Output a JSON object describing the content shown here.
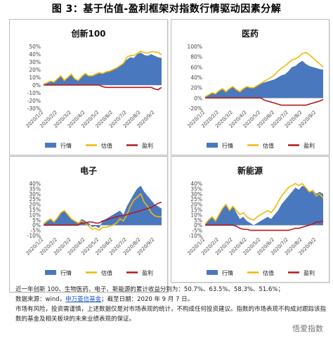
{
  "page": {
    "title": "图 3：基于估值-盈利框架对指数行情驱动因素分解",
    "footer": {
      "line1": "近一年创新 100、生物医药、电子、新能源的累计收益分别为：50.7%、63.5%、58.3%、51.6%；",
      "line2_prefix": "数据来源：wind，",
      "line2_link": "申万菱信基金",
      "line2_suffix": "；截至日期：2020 年 9 月 7 日。",
      "line3": "市场有风险，投资需谨慎，上述数据仅是对市场表现的统计，不构成任何投资建议。指数的市场表现不构成对跟踪该指",
      "line4": "数的基金及相关板块的未来业绩表现的保证。"
    },
    "watermark": "悟爱指数",
    "colors": {
      "market": "#4a78be",
      "valuation": "#f2b705",
      "earnings": "#b21a1a"
    }
  },
  "chart_data": [
    {
      "type": "area",
      "title": "创新100",
      "x_ticks": [
        "2020/1/2",
        "2020/2/2",
        "2020/3/2",
        "2020/4/2",
        "2020/5/2",
        "2020/6/2",
        "2020/7/2",
        "2020/8/2",
        "2020/9/2"
      ],
      "y_ticks": [
        "50%",
        "40%",
        "30%",
        "20%",
        "10%",
        "0%",
        "-10%",
        "-20%",
        "-30%"
      ],
      "ylim": [
        -30,
        50
      ],
      "series_names": [
        "行情",
        "估值",
        "盈利"
      ],
      "x": [
        0,
        0.25,
        0.5,
        0.75,
        1,
        1.25,
        1.5,
        1.75,
        2,
        2.25,
        2.5,
        2.75,
        3,
        3.25,
        3.5,
        3.75,
        4,
        4.25,
        4.5,
        4.75,
        5,
        5.25,
        5.5,
        5.75,
        6,
        6.25,
        6.5,
        6.75,
        7,
        7.25,
        7.5,
        7.75,
        8,
        8.25,
        8.5
      ],
      "series": [
        {
          "name": "行情",
          "values": [
            1,
            3,
            5,
            4,
            8,
            12,
            6,
            10,
            14,
            8,
            6,
            11,
            15,
            12,
            12,
            14,
            16,
            15,
            17,
            18,
            20,
            22,
            25,
            28,
            33,
            36,
            35,
            40,
            42,
            39,
            38,
            40,
            38,
            36,
            35
          ]
        },
        {
          "name": "估值",
          "values": [
            1,
            3,
            5,
            4,
            8,
            12,
            6,
            10,
            14,
            8,
            6,
            11,
            15,
            12,
            12,
            14,
            16,
            15,
            17,
            18,
            20,
            22,
            25,
            28,
            36,
            38,
            38,
            41,
            44,
            42,
            41,
            43,
            43,
            42,
            39
          ]
        },
        {
          "name": "盈利",
          "values": [
            0,
            0,
            0,
            0,
            0,
            0,
            0,
            0,
            0,
            0,
            0,
            0,
            0,
            0,
            0,
            0,
            0,
            -2,
            -3,
            -3,
            -3,
            -3,
            -3,
            -3,
            -3,
            -3,
            -3,
            -3,
            -3,
            -3,
            -3,
            -3,
            -5,
            -6,
            -3
          ]
        }
      ]
    },
    {
      "type": "area",
      "title": "医药",
      "x_ticks": [
        "2020/1/2",
        "2020/2/2",
        "2020/3/2",
        "2020/4/2",
        "2020/5/2",
        "2020/6/2",
        "2020/7/2",
        "2020/8/2",
        "2020/9/2"
      ],
      "y_ticks": [
        "100%",
        "80%",
        "60%",
        "40%",
        "20%",
        "0%",
        "-20%"
      ],
      "ylim": [
        -20,
        100
      ],
      "series_names": [
        "行情",
        "估值",
        "盈利"
      ],
      "x": [
        0,
        0.25,
        0.5,
        0.75,
        1,
        1.25,
        1.5,
        1.75,
        2,
        2.25,
        2.5,
        2.75,
        3,
        3.25,
        3.5,
        3.75,
        4,
        4.25,
        4.5,
        4.75,
        5,
        5.25,
        5.5,
        5.75,
        6,
        6.25,
        6.5,
        6.75,
        7,
        7.25,
        7.5,
        7.75,
        8,
        8.25,
        8.5
      ],
      "series": [
        {
          "name": "行情",
          "values": [
            2,
            6,
            10,
            8,
            14,
            18,
            12,
            18,
            22,
            16,
            12,
            18,
            22,
            20,
            20,
            24,
            28,
            30,
            32,
            34,
            36,
            40,
            44,
            46,
            52,
            60,
            62,
            68,
            72,
            66,
            62,
            60,
            58,
            56,
            55
          ]
        },
        {
          "name": "估值",
          "values": [
            2,
            6,
            10,
            8,
            14,
            18,
            12,
            18,
            22,
            16,
            12,
            18,
            22,
            20,
            20,
            24,
            28,
            32,
            36,
            40,
            45,
            52,
            58,
            62,
            68,
            74,
            76,
            80,
            86,
            88,
            84,
            78,
            72,
            66,
            60
          ]
        },
        {
          "name": "盈利",
          "values": [
            0,
            0,
            0,
            0,
            0,
            0,
            0,
            0,
            0,
            0,
            0,
            0,
            0,
            0,
            0,
            0,
            0,
            -4,
            -6,
            -8,
            -10,
            -12,
            -14,
            -14,
            -14,
            -14,
            -14,
            -14,
            -14,
            -14,
            -12,
            -10,
            -8,
            -6,
            -3
          ]
        }
      ]
    },
    {
      "type": "area",
      "title": "电子",
      "x_ticks": [
        "2020/1/2",
        "2020/2/2",
        "2020/3/2",
        "2020/4/2",
        "2020/5/2",
        "2020/6/2",
        "2020/7/2",
        "2020/8/2",
        "2020/9/2"
      ],
      "y_ticks": [
        "40%",
        "35%",
        "30%",
        "25%",
        "20%",
        "15%",
        "10%",
        "5%",
        "0%",
        "-5%",
        "-10%"
      ],
      "ylim": [
        -10,
        40
      ],
      "series_names": [
        "行情",
        "估值",
        "盈利"
      ],
      "x": [
        0,
        0.25,
        0.5,
        0.75,
        1,
        1.25,
        1.5,
        1.75,
        2,
        2.25,
        2.5,
        2.75,
        3,
        3.25,
        3.5,
        3.75,
        4,
        4.25,
        4.5,
        4.75,
        5,
        5.25,
        5.5,
        5.75,
        6,
        6.25,
        6.5,
        6.75,
        7,
        7.25,
        7.5,
        7.75,
        8,
        8.25,
        8.5
      ],
      "series": [
        {
          "name": "行情",
          "values": [
            1,
            4,
            6,
            3,
            7,
            12,
            14,
            10,
            6,
            4,
            2,
            6,
            4,
            2,
            -2,
            -1,
            -3,
            4,
            6,
            8,
            10,
            12,
            14,
            10,
            18,
            24,
            30,
            35,
            38,
            32,
            28,
            24,
            20,
            18,
            16
          ]
        },
        {
          "name": "估值",
          "values": [
            1,
            4,
            6,
            3,
            7,
            12,
            14,
            10,
            6,
            4,
            2,
            4,
            2,
            -1,
            -4,
            -3,
            -5,
            -2,
            -2,
            -1,
            0,
            2,
            6,
            4,
            10,
            18,
            24,
            27,
            30,
            22,
            18,
            12,
            9,
            8,
            8
          ]
        },
        {
          "name": "盈利",
          "values": [
            0,
            0,
            0,
            0,
            0,
            0,
            0,
            0,
            0,
            0,
            0,
            2,
            2,
            3,
            3,
            2,
            2,
            4,
            5,
            6,
            7,
            8,
            9,
            9,
            10,
            11,
            12,
            13,
            14,
            15,
            16,
            17,
            19,
            21,
            22
          ]
        }
      ]
    },
    {
      "type": "area",
      "title": "新能源",
      "x_ticks": [
        "2020/1/2",
        "2020/2/2",
        "2020/3/2",
        "2020/4/2",
        "2020/5/2",
        "2020/6/2",
        "2020/7/2",
        "2020/8/2",
        "2020/9/2"
      ],
      "y_ticks": [
        "40%",
        "35%",
        "30%",
        "25%",
        "20%",
        "15%",
        "10%",
        "5%",
        "0%",
        "-5%",
        "-10%"
      ],
      "ylim": [
        -10,
        40
      ],
      "series_names": [
        "行情",
        "估值",
        "盈利"
      ],
      "x": [
        0,
        0.25,
        0.5,
        0.75,
        1,
        1.25,
        1.5,
        1.75,
        2,
        2.25,
        2.5,
        2.75,
        3,
        3.25,
        3.5,
        3.75,
        4,
        4.25,
        4.5,
        4.75,
        5,
        5.25,
        5.5,
        5.75,
        6,
        6.25,
        6.5,
        6.75,
        7,
        7.25,
        7.5,
        7.75,
        8,
        8.25,
        8.5
      ],
      "series": [
        {
          "name": "行情",
          "values": [
            1,
            5,
            8,
            4,
            10,
            16,
            20,
            14,
            18,
            12,
            6,
            8,
            4,
            2,
            0,
            2,
            4,
            6,
            8,
            6,
            10,
            14,
            20,
            24,
            28,
            32,
            36,
            34,
            38,
            36,
            32,
            34,
            30,
            32,
            30
          ]
        },
        {
          "name": "估值",
          "values": [
            1,
            5,
            8,
            4,
            10,
            16,
            20,
            14,
            18,
            14,
            10,
            12,
            8,
            6,
            5,
            8,
            10,
            12,
            14,
            12,
            16,
            22,
            28,
            32,
            36,
            38,
            40,
            38,
            40,
            36,
            32,
            33,
            28,
            30,
            26
          ]
        },
        {
          "name": "盈利",
          "values": [
            0,
            0,
            0,
            0,
            0,
            0,
            0,
            0,
            0,
            -1,
            -3,
            -4,
            -4,
            -5,
            -5,
            -5,
            -5,
            -5,
            -5,
            -5,
            -5,
            -5,
            -5,
            -5,
            -5,
            -4,
            -3,
            -3,
            -2,
            -1,
            0,
            1,
            3,
            3,
            4
          ]
        }
      ]
    }
  ]
}
